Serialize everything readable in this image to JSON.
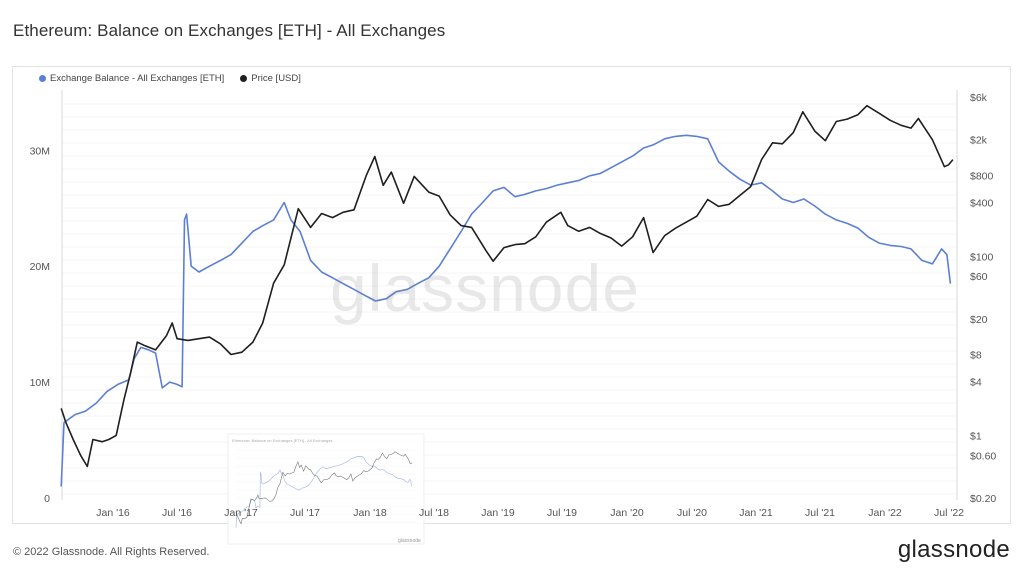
{
  "title": "Ethereum: Balance on Exchanges [ETH] - All Exchanges",
  "footer": "© 2022 Glassnode. All Rights Reserved.",
  "brand": "glassnode",
  "watermark": "glassnode",
  "colors": {
    "balance": "#5b7fd6",
    "price": "#1f1f1f",
    "grid": "#ececec",
    "axis_text": "#555"
  },
  "legend": [
    {
      "label": "Exchange Balance - All Exchanges [ETH]",
      "color": "#5b7fd6"
    },
    {
      "label": "Price [USD]",
      "color": "#1f1f1f"
    }
  ],
  "chart_data": {
    "type": "line",
    "x_ticks": [
      "Jan '16",
      "Jul '16",
      "Jan '17",
      "Jul '17",
      "Jan '18",
      "Jul '18",
      "Jan '19",
      "Jul '19",
      "Jan '20",
      "Jul '20",
      "Jan '21",
      "Jul '21",
      "Jan '22",
      "Jul '22"
    ],
    "y_left_ticks": [
      "0",
      "10M",
      "20M",
      "30M"
    ],
    "y_left_range": [
      0,
      34000000
    ],
    "y_right_ticks": [
      "$0.20",
      "$0.60",
      "$1",
      "$4",
      "$8",
      "$20",
      "$60",
      "$100",
      "$400",
      "$800",
      "$2k",
      "$6k"
    ],
    "y_right_tick_values": [
      0.2,
      0.6,
      1,
      4,
      8,
      20,
      60,
      100,
      400,
      800,
      2000,
      6000
    ],
    "y_right_scale": "log",
    "y_right_range": [
      0.2,
      6000
    ],
    "grid": true,
    "legend_position": "top-left",
    "series": [
      {
        "name": "Exchange Balance - All Exchanges [ETH]",
        "axis": "left",
        "points": [
          [
            "2015-08-07",
            1000000
          ],
          [
            "2015-08-15",
            6500000
          ],
          [
            "2015-09-15",
            7200000
          ],
          [
            "2015-10-15",
            7500000
          ],
          [
            "2015-11-15",
            8200000
          ],
          [
            "2015-12-15",
            9200000
          ],
          [
            "2016-01-15",
            9800000
          ],
          [
            "2016-02-15",
            10200000
          ],
          [
            "2016-03-01",
            12000000
          ],
          [
            "2016-03-20",
            13000000
          ],
          [
            "2016-04-10",
            12800000
          ],
          [
            "2016-05-01",
            12500000
          ],
          [
            "2016-05-20",
            9500000
          ],
          [
            "2016-06-10",
            10000000
          ],
          [
            "2016-07-01",
            9800000
          ],
          [
            "2016-07-15",
            9600000
          ],
          [
            "2016-07-22",
            24000000
          ],
          [
            "2016-07-28",
            24500000
          ],
          [
            "2016-08-10",
            20000000
          ],
          [
            "2016-09-01",
            19500000
          ],
          [
            "2016-10-01",
            20000000
          ],
          [
            "2016-11-01",
            20500000
          ],
          [
            "2016-12-01",
            21000000
          ],
          [
            "2017-01-01",
            22000000
          ],
          [
            "2017-02-01",
            23000000
          ],
          [
            "2017-03-01",
            23500000
          ],
          [
            "2017-04-01",
            24000000
          ],
          [
            "2017-05-01",
            25500000
          ],
          [
            "2017-05-20",
            24000000
          ],
          [
            "2017-06-15",
            23000000
          ],
          [
            "2017-07-15",
            20500000
          ],
          [
            "2017-08-15",
            19500000
          ],
          [
            "2017-09-15",
            19000000
          ],
          [
            "2017-10-15",
            18500000
          ],
          [
            "2017-11-15",
            18000000
          ],
          [
            "2017-12-15",
            17500000
          ],
          [
            "2018-01-15",
            17000000
          ],
          [
            "2018-02-15",
            17200000
          ],
          [
            "2018-03-15",
            17800000
          ],
          [
            "2018-04-15",
            18000000
          ],
          [
            "2018-05-15",
            18500000
          ],
          [
            "2018-06-15",
            19000000
          ],
          [
            "2018-07-15",
            20000000
          ],
          [
            "2018-08-15",
            21500000
          ],
          [
            "2018-09-15",
            23000000
          ],
          [
            "2018-10-15",
            24500000
          ],
          [
            "2018-11-15",
            25500000
          ],
          [
            "2018-12-15",
            26500000
          ],
          [
            "2019-01-15",
            26800000
          ],
          [
            "2019-02-15",
            26000000
          ],
          [
            "2019-03-15",
            26200000
          ],
          [
            "2019-04-15",
            26500000
          ],
          [
            "2019-05-15",
            26700000
          ],
          [
            "2019-06-15",
            27000000
          ],
          [
            "2019-07-15",
            27200000
          ],
          [
            "2019-08-15",
            27400000
          ],
          [
            "2019-09-15",
            27800000
          ],
          [
            "2019-10-15",
            28000000
          ],
          [
            "2019-11-15",
            28500000
          ],
          [
            "2019-12-15",
            29000000
          ],
          [
            "2020-01-15",
            29500000
          ],
          [
            "2020-02-15",
            30200000
          ],
          [
            "2020-03-15",
            30500000
          ],
          [
            "2020-04-15",
            31000000
          ],
          [
            "2020-05-15",
            31200000
          ],
          [
            "2020-06-15",
            31300000
          ],
          [
            "2020-07-15",
            31200000
          ],
          [
            "2020-08-15",
            31000000
          ],
          [
            "2020-09-15",
            29000000
          ],
          [
            "2020-10-15",
            28200000
          ],
          [
            "2020-11-15",
            27500000
          ],
          [
            "2020-12-15",
            27000000
          ],
          [
            "2021-01-15",
            27200000
          ],
          [
            "2021-02-15",
            26500000
          ],
          [
            "2021-03-15",
            25800000
          ],
          [
            "2021-04-15",
            25500000
          ],
          [
            "2021-05-15",
            25800000
          ],
          [
            "2021-06-15",
            25200000
          ],
          [
            "2021-07-15",
            24500000
          ],
          [
            "2021-08-15",
            24000000
          ],
          [
            "2021-09-15",
            23700000
          ],
          [
            "2021-10-15",
            23300000
          ],
          [
            "2021-11-15",
            22500000
          ],
          [
            "2021-12-15",
            22000000
          ],
          [
            "2022-01-15",
            21800000
          ],
          [
            "2022-02-15",
            21700000
          ],
          [
            "2022-03-15",
            21500000
          ],
          [
            "2022-04-15",
            20500000
          ],
          [
            "2022-05-15",
            20200000
          ],
          [
            "2022-06-10",
            21500000
          ],
          [
            "2022-06-25",
            21000000
          ],
          [
            "2022-07-05",
            18500000
          ]
        ]
      },
      {
        "name": "Price [USD]",
        "axis": "right",
        "points": [
          [
            "2015-08-07",
            2.0
          ],
          [
            "2015-08-20",
            1.4
          ],
          [
            "2015-09-10",
            0.9
          ],
          [
            "2015-10-01",
            0.6
          ],
          [
            "2015-10-20",
            0.45
          ],
          [
            "2015-11-05",
            0.9
          ],
          [
            "2015-12-01",
            0.85
          ],
          [
            "2015-12-20",
            0.9
          ],
          [
            "2016-01-10",
            1.0
          ],
          [
            "2016-02-01",
            2.5
          ],
          [
            "2016-02-20",
            5.0
          ],
          [
            "2016-03-10",
            11.0
          ],
          [
            "2016-04-01",
            10.0
          ],
          [
            "2016-05-01",
            9.0
          ],
          [
            "2016-06-01",
            13.0
          ],
          [
            "2016-06-17",
            18.0
          ],
          [
            "2016-07-01",
            12.0
          ],
          [
            "2016-08-01",
            11.5
          ],
          [
            "2016-09-01",
            12.0
          ],
          [
            "2016-10-01",
            12.5
          ],
          [
            "2016-11-01",
            10.5
          ],
          [
            "2016-12-01",
            8.0
          ],
          [
            "2017-01-01",
            8.5
          ],
          [
            "2017-02-01",
            11.0
          ],
          [
            "2017-03-01",
            18.0
          ],
          [
            "2017-04-01",
            50.0
          ],
          [
            "2017-05-01",
            80.0
          ],
          [
            "2017-06-10",
            340.0
          ],
          [
            "2017-07-15",
            210.0
          ],
          [
            "2017-08-15",
            300.0
          ],
          [
            "2017-09-15",
            270.0
          ],
          [
            "2017-10-15",
            310.0
          ],
          [
            "2017-11-15",
            330.0
          ],
          [
            "2017-12-20",
            800.0
          ],
          [
            "2018-01-13",
            1300.0
          ],
          [
            "2018-02-06",
            620.0
          ],
          [
            "2018-03-01",
            870.0
          ],
          [
            "2018-04-05",
            390.0
          ],
          [
            "2018-05-05",
            780.0
          ],
          [
            "2018-06-15",
            520.0
          ],
          [
            "2018-07-15",
            470.0
          ],
          [
            "2018-08-15",
            290.0
          ],
          [
            "2018-09-15",
            220.0
          ],
          [
            "2018-10-15",
            210.0
          ],
          [
            "2018-11-25",
            115.0
          ],
          [
            "2018-12-15",
            88.0
          ],
          [
            "2019-01-15",
            125.0
          ],
          [
            "2019-02-15",
            135.0
          ],
          [
            "2019-03-15",
            138.0
          ],
          [
            "2019-04-15",
            165.0
          ],
          [
            "2019-05-15",
            240.0
          ],
          [
            "2019-06-25",
            310.0
          ],
          [
            "2019-07-15",
            220.0
          ],
          [
            "2019-08-15",
            190.0
          ],
          [
            "2019-09-15",
            210.0
          ],
          [
            "2019-10-15",
            180.0
          ],
          [
            "2019-11-15",
            160.0
          ],
          [
            "2019-12-15",
            130.0
          ],
          [
            "2020-01-15",
            165.0
          ],
          [
            "2020-02-15",
            270.0
          ],
          [
            "2020-03-13",
            110.0
          ],
          [
            "2020-04-15",
            170.0
          ],
          [
            "2020-05-15",
            205.0
          ],
          [
            "2020-06-15",
            240.0
          ],
          [
            "2020-07-15",
            280.0
          ],
          [
            "2020-08-15",
            430.0
          ],
          [
            "2020-09-15",
            360.0
          ],
          [
            "2020-10-15",
            380.0
          ],
          [
            "2020-11-15",
            480.0
          ],
          [
            "2020-12-15",
            600.0
          ],
          [
            "2021-01-15",
            1200.0
          ],
          [
            "2021-02-15",
            1850.0
          ],
          [
            "2021-03-15",
            1800.0
          ],
          [
            "2021-04-15",
            2400.0
          ],
          [
            "2021-05-12",
            4100.0
          ],
          [
            "2021-06-15",
            2500.0
          ],
          [
            "2021-07-15",
            1950.0
          ],
          [
            "2021-08-15",
            3200.0
          ],
          [
            "2021-09-15",
            3400.0
          ],
          [
            "2021-10-15",
            3800.0
          ],
          [
            "2021-11-10",
            4800.0
          ],
          [
            "2021-12-15",
            3950.0
          ],
          [
            "2022-01-15",
            3300.0
          ],
          [
            "2022-02-15",
            2900.0
          ],
          [
            "2022-03-15",
            2700.0
          ],
          [
            "2022-04-05",
            3450.0
          ],
          [
            "2022-05-15",
            2000.0
          ],
          [
            "2022-06-18",
            1000.0
          ],
          [
            "2022-06-30",
            1050.0
          ],
          [
            "2022-07-12",
            1200.0
          ]
        ]
      }
    ],
    "inset_thumbnail": {
      "title": "Ethereum: Balance on Exchanges [ETH] - All Exchanges",
      "x_ticks": [
        "Jan '17",
        "Jul '17",
        "Jan '18"
      ],
      "brand": "glassnode"
    }
  }
}
